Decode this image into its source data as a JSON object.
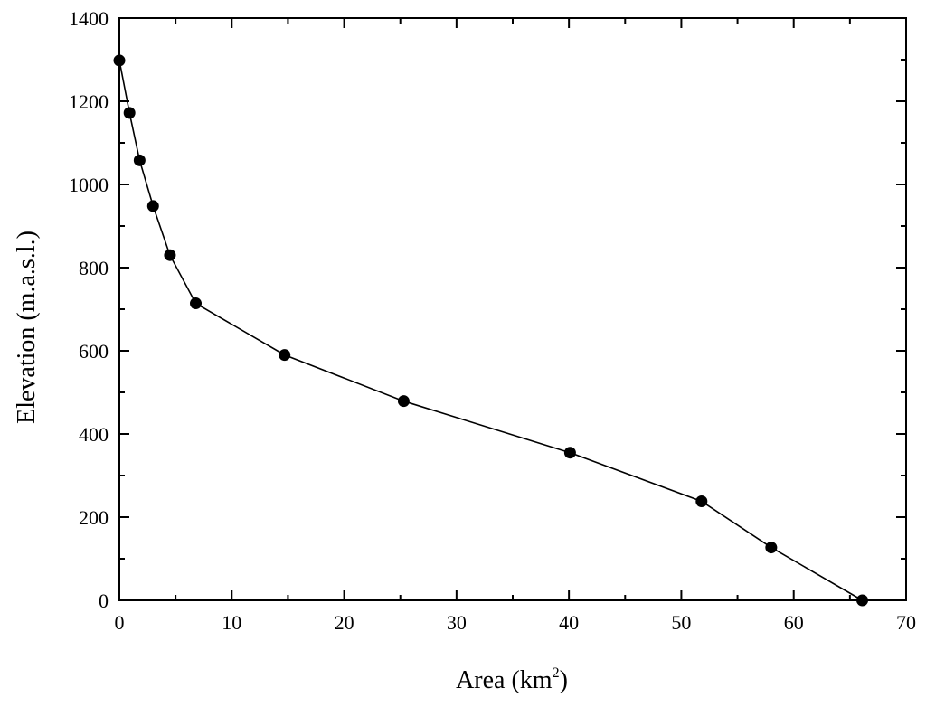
{
  "chart_data": {
    "type": "line",
    "xlabel": "Area (km",
    "xlabel_superscript": "2",
    "xlabel_suffix": ")",
    "ylabel": "Elevation (m.a.s.l.)",
    "xlim": [
      0,
      70
    ],
    "ylim": [
      0,
      1400
    ],
    "x_ticks": [
      "0",
      "10",
      "20",
      "30",
      "40",
      "50",
      "60",
      "70"
    ],
    "y_ticks": [
      "0",
      "200",
      "400",
      "600",
      "800",
      "1000",
      "1200",
      "1400"
    ],
    "x_minor_step": 5,
    "y_minor_step": 100,
    "grid": false,
    "legend": "none",
    "marker": "filled-circle",
    "line_color": "#000000",
    "marker_color": "#000000",
    "series": [
      {
        "x": [
          0.0,
          0.9,
          1.8,
          3.0,
          4.5,
          6.8,
          14.7,
          25.3,
          40.1,
          51.8,
          58.0,
          66.1
        ],
        "y": [
          1298,
          1172,
          1058,
          948,
          830,
          714,
          590,
          479,
          355,
          238,
          127,
          0
        ]
      }
    ]
  }
}
